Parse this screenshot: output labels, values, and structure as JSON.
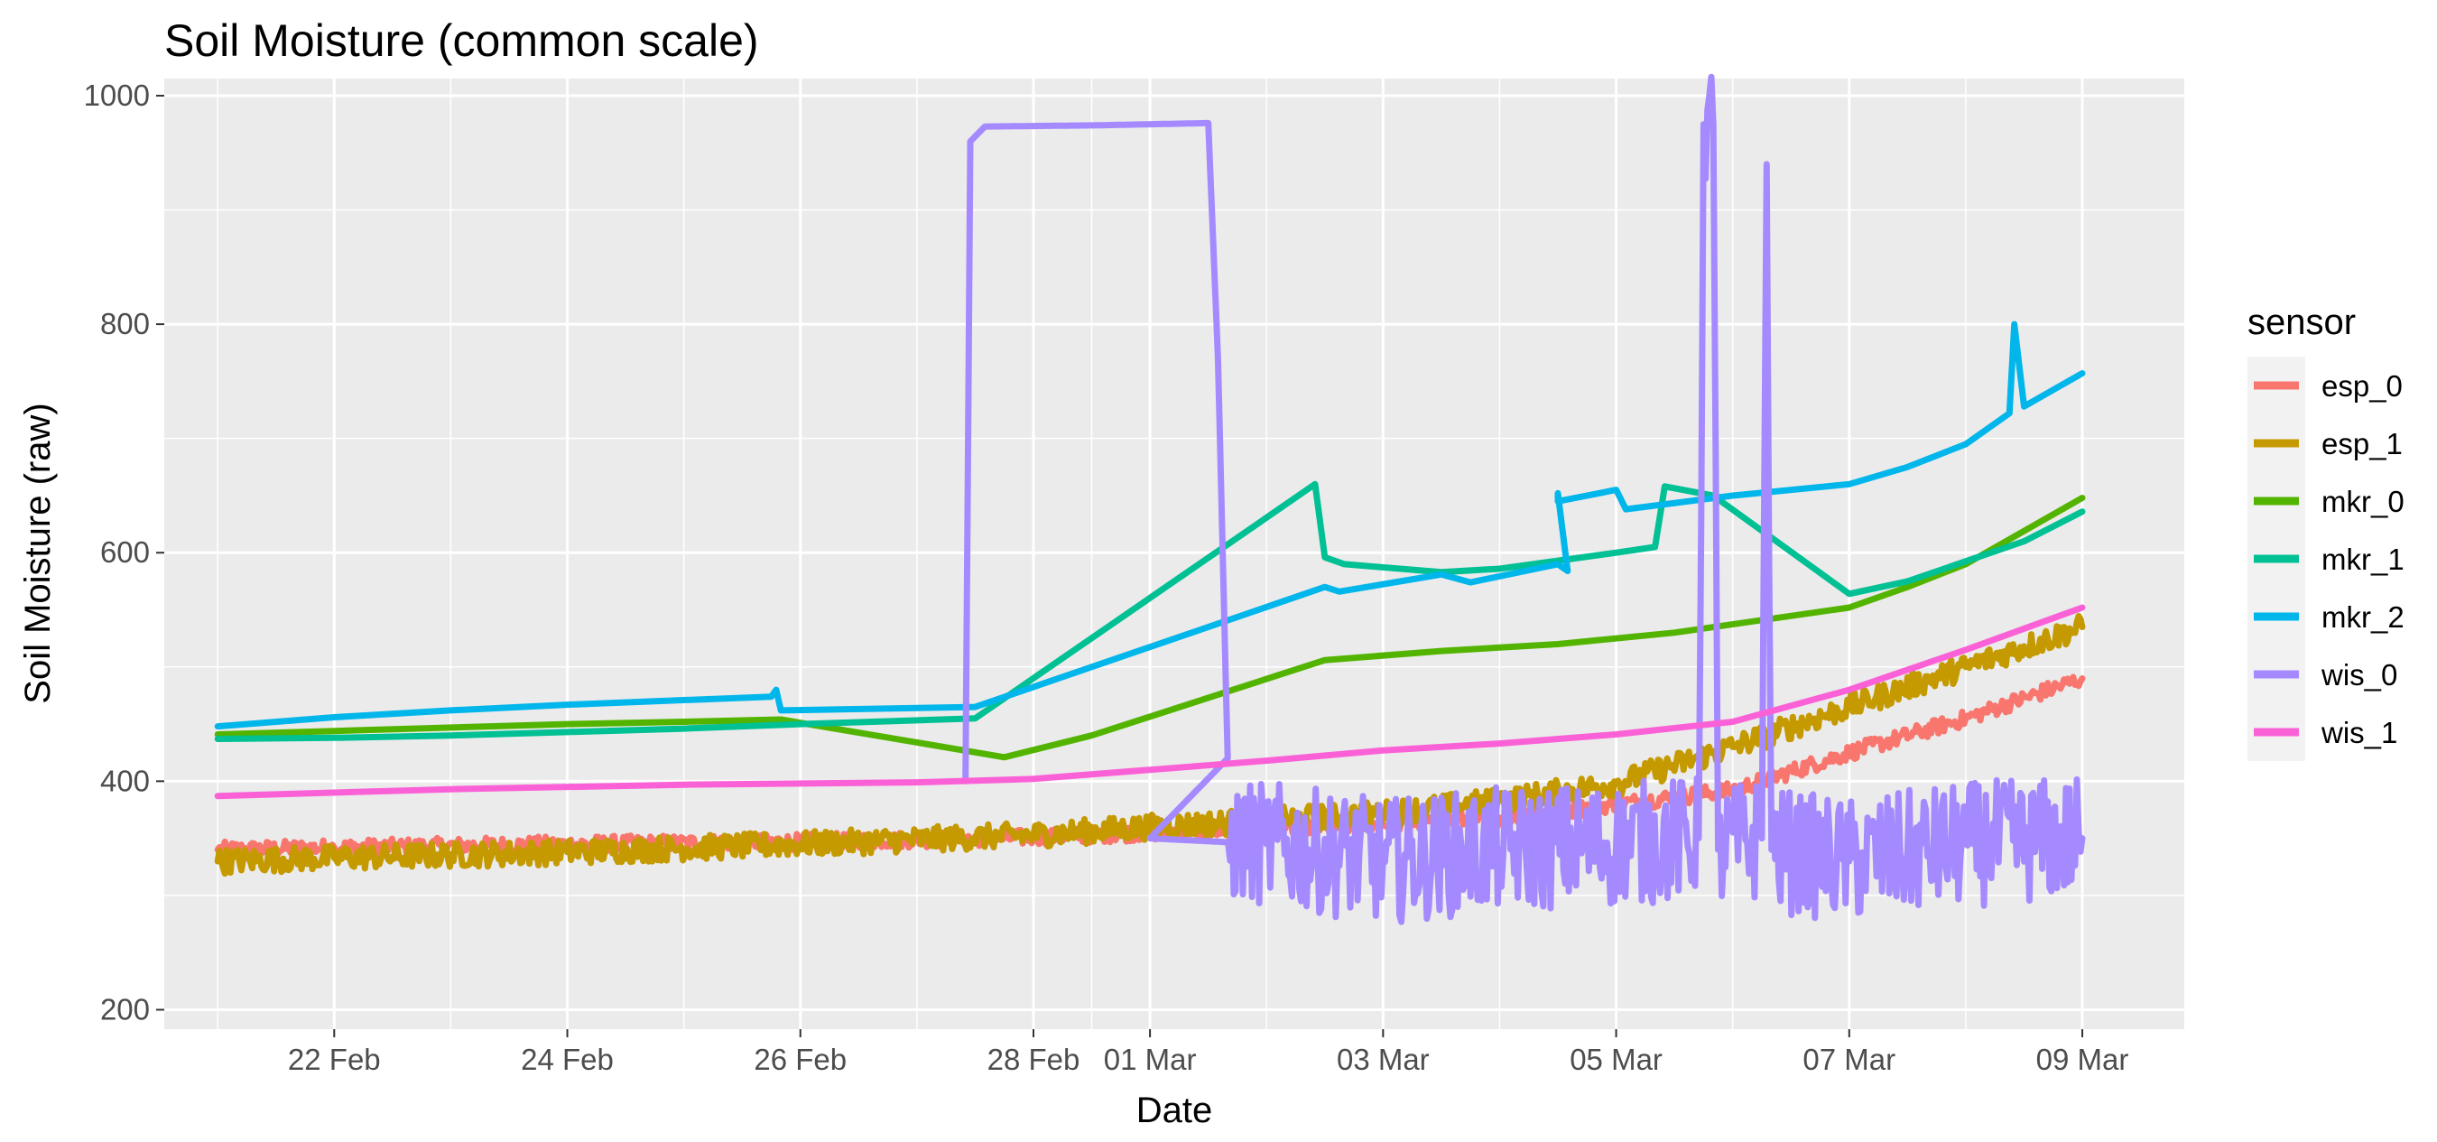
{
  "chart_data": {
    "type": "line",
    "title": "Soil Moisture (common scale)",
    "xlabel": "Date",
    "ylabel": "Soil Moisture (raw)",
    "x_unit": "date",
    "xlim": [
      "2021-02-20T13:00",
      "2021-03-09T21:00"
    ],
    "ylim": [
      183,
      1015
    ],
    "x_ticks": [
      {
        "date": "2021-02-22",
        "label": "22 Feb"
      },
      {
        "date": "2021-02-24",
        "label": "24 Feb"
      },
      {
        "date": "2021-02-26",
        "label": "26 Feb"
      },
      {
        "date": "2021-02-28",
        "label": "28 Feb"
      },
      {
        "date": "2021-03-01",
        "label": "01 Mar"
      },
      {
        "date": "2021-03-03",
        "label": "03 Mar"
      },
      {
        "date": "2021-03-05",
        "label": "05 Mar"
      },
      {
        "date": "2021-03-07",
        "label": "07 Mar"
      },
      {
        "date": "2021-03-09",
        "label": "09 Mar"
      }
    ],
    "y_ticks": [
      {
        "value": 200,
        "label": "200"
      },
      {
        "value": 400,
        "label": "400"
      },
      {
        "value": 600,
        "label": "600"
      },
      {
        "value": 800,
        "label": "800"
      },
      {
        "value": 1000,
        "label": "1000"
      }
    ],
    "grid": true,
    "legend": {
      "title": "sensor",
      "position": "right"
    },
    "background": "#ebebeb",
    "series": [
      {
        "name": "esp_0",
        "color": "#F8766D",
        "noise": 7,
        "points": [
          [
            "2021-02-21T00:00",
            340
          ],
          [
            "2021-02-22T00:00",
            342
          ],
          [
            "2021-02-24T00:00",
            345
          ],
          [
            "2021-02-26T00:00",
            347
          ],
          [
            "2021-02-28T00:00",
            351
          ],
          [
            "2021-03-01T00:00",
            355
          ],
          [
            "2021-03-03T00:00",
            362
          ],
          [
            "2021-03-04T00:00",
            368
          ],
          [
            "2021-03-05T00:00",
            380
          ],
          [
            "2021-03-06T00:00",
            392
          ],
          [
            "2021-03-07T00:00",
            425
          ],
          [
            "2021-03-08T00:00",
            455
          ],
          [
            "2021-03-09T00:00",
            490
          ]
        ]
      },
      {
        "name": "esp_1",
        "color": "#C49A00",
        "noise": 11,
        "points": [
          [
            "2021-02-21T00:00",
            330
          ],
          [
            "2021-02-22T00:00",
            333
          ],
          [
            "2021-02-24T00:00",
            338
          ],
          [
            "2021-02-26T00:00",
            345
          ],
          [
            "2021-02-28T00:00",
            353
          ],
          [
            "2021-03-01T00:00",
            360
          ],
          [
            "2021-03-03T00:00",
            372
          ],
          [
            "2021-03-04T00:00",
            383
          ],
          [
            "2021-03-05T00:00",
            398
          ],
          [
            "2021-03-06T00:00",
            430
          ],
          [
            "2021-03-07T00:00",
            465
          ],
          [
            "2021-03-08T00:00",
            500
          ],
          [
            "2021-03-09T00:00",
            535
          ]
        ]
      },
      {
        "name": "mkr_0",
        "color": "#53B400",
        "noise": 0,
        "points": [
          [
            "2021-02-21T00:00",
            441
          ],
          [
            "2021-02-22T00:00",
            444
          ],
          [
            "2021-02-24T00:00",
            450
          ],
          [
            "2021-02-25T00:00",
            452
          ],
          [
            "2021-02-25T20:00",
            454
          ],
          [
            "2021-02-27T18:00",
            421
          ],
          [
            "2021-02-28T12:00",
            440
          ],
          [
            "2021-03-02T12:00",
            506
          ],
          [
            "2021-03-03T12:00",
            514
          ],
          [
            "2021-03-04T12:00",
            520
          ],
          [
            "2021-03-05T12:00",
            530
          ],
          [
            "2021-03-07T00:00",
            552
          ],
          [
            "2021-03-07T12:00",
            570
          ],
          [
            "2021-03-08T00:00",
            590
          ],
          [
            "2021-03-09T00:00",
            648
          ]
        ]
      },
      {
        "name": "mkr_1",
        "color": "#00C094",
        "noise": 0,
        "points": [
          [
            "2021-02-21T00:00",
            437
          ],
          [
            "2021-02-22T00:00",
            438
          ],
          [
            "2021-02-23T00:00",
            440
          ],
          [
            "2021-02-24T00:00",
            443
          ],
          [
            "2021-02-25T00:00",
            446
          ],
          [
            "2021-02-26T00:00",
            450
          ],
          [
            "2021-02-27T12:00",
            455
          ],
          [
            "2021-03-02T10:00",
            660
          ],
          [
            "2021-03-02T12:00",
            596
          ],
          [
            "2021-03-02T16:00",
            590
          ],
          [
            "2021-03-03T12:00",
            583
          ],
          [
            "2021-03-04T00:00",
            586
          ],
          [
            "2021-03-05T00:00",
            600
          ],
          [
            "2021-03-05T08:00",
            605
          ],
          [
            "2021-03-05T10:00",
            658
          ],
          [
            "2021-03-05T20:00",
            650
          ],
          [
            "2021-03-07T00:00",
            564
          ],
          [
            "2021-03-07T12:00",
            575
          ],
          [
            "2021-03-08T12:00",
            610
          ],
          [
            "2021-03-09T00:00",
            636
          ]
        ]
      },
      {
        "name": "mkr_2",
        "color": "#00B6EB",
        "noise": 0,
        "points": [
          [
            "2021-02-21T00:00",
            448
          ],
          [
            "2021-02-22T00:00",
            456
          ],
          [
            "2021-02-23T00:00",
            462
          ],
          [
            "2021-02-24T00:00",
            467
          ],
          [
            "2021-02-25T18:00",
            474
          ],
          [
            "2021-02-25T19:00",
            480
          ],
          [
            "2021-02-25T20:00",
            462
          ],
          [
            "2021-02-27T12:00",
            465
          ],
          [
            "2021-03-02T12:00",
            570
          ],
          [
            "2021-03-02T15:00",
            566
          ],
          [
            "2021-03-03T12:00",
            581
          ],
          [
            "2021-03-03T18:00",
            574
          ],
          [
            "2021-03-04T12:00",
            590
          ],
          [
            "2021-03-04T14:00",
            584
          ],
          [
            "2021-03-04T12:00",
            652
          ],
          [
            "2021-03-04T12:00",
            645
          ],
          [
            "2021-03-05T00:00",
            655
          ],
          [
            "2021-03-05T02:00",
            638
          ],
          [
            "2021-03-06T00:00",
            650
          ],
          [
            "2021-03-07T00:00",
            660
          ],
          [
            "2021-03-07T12:00",
            675
          ],
          [
            "2021-03-08T00:00",
            695
          ],
          [
            "2021-03-08T09:00",
            722
          ],
          [
            "2021-03-08T10:00",
            800
          ],
          [
            "2021-03-08T12:00",
            728
          ],
          [
            "2021-03-09T00:00",
            757
          ]
        ]
      },
      {
        "name": "wis_0",
        "color": "#A58AFF",
        "noise": 55,
        "noise_from": "2021-02-29T16:00",
        "points": [
          [
            "2021-02-27T10:00",
            400
          ],
          [
            "2021-02-27T11:00",
            960
          ],
          [
            "2021-02-27T14:00",
            973
          ],
          [
            "2021-02-28T12:00",
            974
          ],
          [
            "2021-02-29T00:00",
            975
          ],
          [
            "2021-02-29T12:00",
            976
          ],
          [
            "2021-02-29T14:00",
            770
          ],
          [
            "2021-02-29T16:00",
            420
          ],
          [
            "2021-03-01T00:00",
            350
          ],
          [
            "2021-03-02T00:00",
            345
          ],
          [
            "2021-03-03T00:00",
            330
          ],
          [
            "2021-03-04T00:00",
            340
          ],
          [
            "2021-03-05T00:00",
            345
          ],
          [
            "2021-03-05T17:00",
            350
          ],
          [
            "2021-03-05T18:00",
            975
          ],
          [
            "2021-03-05T20:00",
            975
          ],
          [
            "2021-03-05T21:00",
            340
          ],
          [
            "2021-03-06T06:00",
            350
          ],
          [
            "2021-03-06T07:00",
            940
          ],
          [
            "2021-03-06T08:00",
            340
          ],
          [
            "2021-03-07T00:00",
            330
          ],
          [
            "2021-03-08T00:00",
            345
          ],
          [
            "2021-03-09T00:00",
            350
          ]
        ]
      },
      {
        "name": "wis_1",
        "color": "#FB61D7",
        "noise": 0,
        "points": [
          [
            "2021-02-21T00:00",
            387
          ],
          [
            "2021-02-23T00:00",
            393
          ],
          [
            "2021-02-25T00:00",
            397
          ],
          [
            "2021-02-27T00:00",
            399
          ],
          [
            "2021-02-28T00:00",
            402
          ],
          [
            "2021-03-01T00:00",
            410
          ],
          [
            "2021-03-02T00:00",
            418
          ],
          [
            "2021-03-03T00:00",
            427
          ],
          [
            "2021-03-04T00:00",
            433
          ],
          [
            "2021-03-05T00:00",
            441
          ],
          [
            "2021-03-06T00:00",
            452
          ],
          [
            "2021-03-07T00:00",
            480
          ],
          [
            "2021-03-08T00:00",
            515
          ],
          [
            "2021-03-09T00:00",
            552
          ]
        ]
      }
    ]
  }
}
